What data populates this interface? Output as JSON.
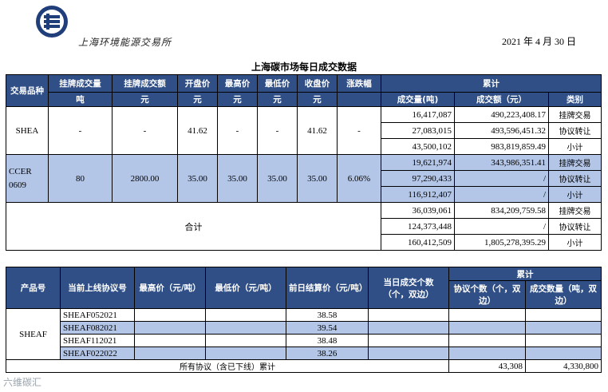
{
  "header": {
    "brand": "上海环境能源交易所",
    "date": "2021 年 4 月 30 日",
    "title": "上海碳市场每日成交数据"
  },
  "spot": {
    "headers": {
      "product": "交易品种",
      "listed_volume": "挂牌成交量",
      "listed_amount": "挂牌成交额",
      "open": "开盘价",
      "high": "最高价",
      "low": "最低价",
      "close": "收盘价",
      "change": "涨跌幅",
      "cumulative": "累计",
      "volume": "成交量(吨)",
      "amount": "成交额（元）",
      "category": "类别"
    },
    "units": {
      "listed_volume": "吨",
      "listed_amount": "元",
      "open": "元",
      "high": "元",
      "low": "元",
      "close": "元"
    },
    "shea": {
      "name": "SHEA",
      "listed_volume": "-",
      "listed_amount": "-",
      "open": "41.62",
      "high": "-",
      "low": "-",
      "close": "41.62",
      "change": "-",
      "rows": [
        {
          "volume": "16,417,087",
          "amount": "490,223,408.17",
          "category": "挂牌交易"
        },
        {
          "volume": "27,083,015",
          "amount": "493,596,451.32",
          "category": "协议转让"
        },
        {
          "volume": "43,500,102",
          "amount": "983,819,859.49",
          "category": "小计"
        }
      ]
    },
    "ccer": {
      "name": "CCER 0609",
      "listed_volume": "80",
      "listed_amount": "2800.00",
      "open": "35.00",
      "high": "35.00",
      "low": "35.00",
      "close": "35.00",
      "change": "6.06%",
      "rows": [
        {
          "volume": "19,621,974",
          "amount": "343,986,351.41",
          "category": "挂牌交易"
        },
        {
          "volume": "97,290,433",
          "amount": "/",
          "category": "协议转让"
        },
        {
          "volume": "116,912,407",
          "amount": "/",
          "category": "小计"
        }
      ]
    },
    "total": {
      "label": "合计",
      "rows": [
        {
          "volume": "36,039,061",
          "amount": "834,209,759.58",
          "category": "挂牌交易"
        },
        {
          "volume": "124,373,448",
          "amount": "/",
          "category": "协议转让"
        },
        {
          "volume": "160,412,509",
          "amount": "1,805,278,395.29",
          "category": "小计"
        }
      ]
    }
  },
  "forward": {
    "headers": {
      "product": "产品号",
      "contract": "当前上线协议号",
      "high": "最高价（元/吨）",
      "low": "最低价（元/吨）",
      "settle": "前日结算价（元/吨）",
      "daily_count": "当日成交个数（个，双边）",
      "cumulative": "累计",
      "agreement_count": "协议个数（个，双边）",
      "volume": "成交数量（吨，双边）"
    },
    "product": "SHEAF",
    "rows": [
      {
        "contract": "SHEAF052021",
        "high": "",
        "low": "",
        "settle": "38.58",
        "daily": "",
        "count": "",
        "volume": ""
      },
      {
        "contract": "SHEAF082021",
        "high": "",
        "low": "",
        "settle": "39.54",
        "daily": "",
        "count": "",
        "volume": ""
      },
      {
        "contract": "SHEAF112021",
        "high": "",
        "low": "",
        "settle": "38.48",
        "daily": "",
        "count": "",
        "volume": ""
      },
      {
        "contract": "SHEAF022022",
        "high": "",
        "low": "",
        "settle": "38.26",
        "daily": "",
        "count": "",
        "volume": ""
      }
    ],
    "footer": {
      "label": "所有协议（含已下线）累计",
      "count": "43,308",
      "volume": "4,330,800"
    }
  },
  "watermark": "六维碳汇"
}
